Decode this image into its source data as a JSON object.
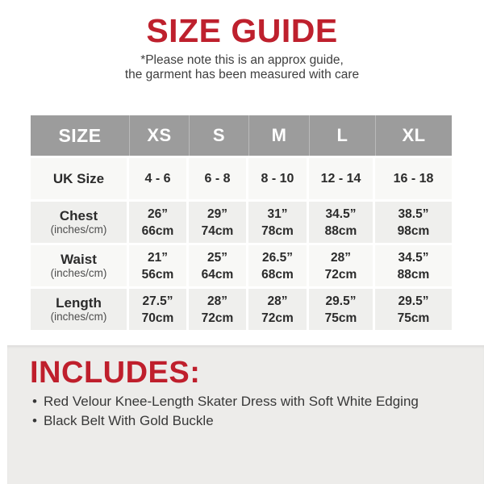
{
  "colors": {
    "accent_red": "#be202d",
    "header_gray": "#9c9c9c",
    "row_light": "#f8f8f6",
    "row_alt": "#efefed",
    "panel_gray": "#edecea",
    "text_dark": "#2b2b2b",
    "text_muted": "#4d4d4d"
  },
  "header": {
    "title": "SIZE GUIDE",
    "note_line1": "*Please note this is an approx guide,",
    "note_line2": "the garment has been measured with care"
  },
  "size_table": {
    "columns": [
      "SIZE",
      "XS",
      "S",
      "M",
      "L",
      "XL"
    ],
    "rows": [
      {
        "label": "UK Size",
        "sublabel": "",
        "values": [
          [
            "4 - 6"
          ],
          [
            "6 - 8"
          ],
          [
            "8 - 10"
          ],
          [
            "12 - 14"
          ],
          [
            "16 - 18"
          ]
        ]
      },
      {
        "label": "Chest",
        "sublabel": "(inches/cm)",
        "values": [
          [
            "26”",
            "66cm"
          ],
          [
            "29”",
            "74cm"
          ],
          [
            "31”",
            "78cm"
          ],
          [
            "34.5”",
            "88cm"
          ],
          [
            "38.5”",
            "98cm"
          ]
        ]
      },
      {
        "label": "Waist",
        "sublabel": "(inches/cm)",
        "values": [
          [
            "21”",
            "56cm"
          ],
          [
            "25”",
            "64cm"
          ],
          [
            "26.5”",
            "68cm"
          ],
          [
            "28”",
            "72cm"
          ],
          [
            "34.5”",
            "88cm"
          ]
        ]
      },
      {
        "label": "Length",
        "sublabel": "(inches/cm)",
        "values": [
          [
            "27.5”",
            "70cm"
          ],
          [
            "28”",
            "72cm"
          ],
          [
            "28”",
            "72cm"
          ],
          [
            "29.5”",
            "75cm"
          ],
          [
            "29.5”",
            "75cm"
          ]
        ]
      }
    ]
  },
  "includes": {
    "heading": "INCLUDES:",
    "bullet": "•",
    "items": [
      "Red Velour Knee-Length Skater Dress with Soft White Edging",
      "Black Belt With Gold Buckle"
    ]
  }
}
